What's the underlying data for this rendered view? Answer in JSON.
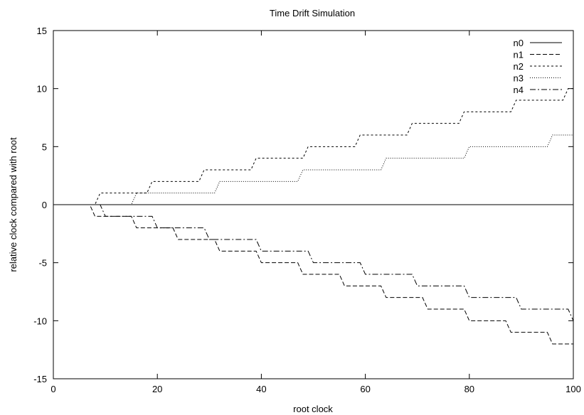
{
  "chart_data": {
    "type": "line",
    "title": "Time Drift Simulation",
    "xlabel": "root clock",
    "ylabel": "relative clock compared with root",
    "xlim": [
      0,
      100
    ],
    "ylim": [
      -15,
      15
    ],
    "xticks": [
      "0",
      "20",
      "40",
      "60",
      "80",
      "100"
    ],
    "yticks": [
      "15",
      "10",
      "5",
      "0",
      "-5",
      "-10",
      "-15"
    ],
    "xtick_values": [
      0,
      20,
      40,
      60,
      80,
      100
    ],
    "ytick_values": [
      15,
      10,
      5,
      0,
      -5,
      -10,
      -15
    ],
    "grid": false,
    "legend_position": "top-right",
    "series": [
      {
        "name": "n0",
        "dash": "solid",
        "points": [
          [
            0,
            0
          ],
          [
            100,
            0
          ]
        ]
      },
      {
        "name": "n1",
        "dash": "6,3",
        "points": [
          [
            0,
            0
          ],
          [
            7,
            0
          ],
          [
            8,
            -1
          ],
          [
            15,
            -1
          ],
          [
            16,
            -2
          ],
          [
            23,
            -2
          ],
          [
            24,
            -3
          ],
          [
            31,
            -3
          ],
          [
            32,
            -4
          ],
          [
            39,
            -4
          ],
          [
            40,
            -5
          ],
          [
            47,
            -5
          ],
          [
            48,
            -6
          ],
          [
            55,
            -6
          ],
          [
            56,
            -7
          ],
          [
            63,
            -7
          ],
          [
            64,
            -8
          ],
          [
            71,
            -8
          ],
          [
            72,
            -9
          ],
          [
            79,
            -9
          ],
          [
            80,
            -10
          ],
          [
            87,
            -10
          ],
          [
            88,
            -11
          ],
          [
            95,
            -11
          ],
          [
            96,
            -12
          ],
          [
            100,
            -12
          ]
        ]
      },
      {
        "name": "n2",
        "dash": "3,3",
        "points": [
          [
            0,
            0
          ],
          [
            8,
            0
          ],
          [
            9,
            1
          ],
          [
            18,
            1
          ],
          [
            19,
            2
          ],
          [
            28,
            2
          ],
          [
            29,
            3
          ],
          [
            38,
            3
          ],
          [
            39,
            4
          ],
          [
            48,
            4
          ],
          [
            49,
            5
          ],
          [
            58,
            5
          ],
          [
            59,
            6
          ],
          [
            68,
            6
          ],
          [
            69,
            7
          ],
          [
            78,
            7
          ],
          [
            79,
            8
          ],
          [
            88,
            8
          ],
          [
            89,
            9
          ],
          [
            98,
            9
          ],
          [
            99,
            10
          ],
          [
            100,
            10
          ]
        ]
      },
      {
        "name": "n3",
        "dash": "1,2",
        "points": [
          [
            0,
            0
          ],
          [
            15,
            0
          ],
          [
            16,
            1
          ],
          [
            31,
            1
          ],
          [
            32,
            2
          ],
          [
            47,
            2
          ],
          [
            48,
            3
          ],
          [
            63,
            3
          ],
          [
            64,
            4
          ],
          [
            79,
            4
          ],
          [
            80,
            5
          ],
          [
            95,
            5
          ],
          [
            96,
            6
          ],
          [
            100,
            6
          ]
        ]
      },
      {
        "name": "n4",
        "dash": "8,3,2,3",
        "points": [
          [
            0,
            0
          ],
          [
            9,
            0
          ],
          [
            10,
            -1
          ],
          [
            19,
            -1
          ],
          [
            20,
            -2
          ],
          [
            29,
            -2
          ],
          [
            30,
            -3
          ],
          [
            39,
            -3
          ],
          [
            40,
            -4
          ],
          [
            49,
            -4
          ],
          [
            50,
            -5
          ],
          [
            59,
            -5
          ],
          [
            60,
            -6
          ],
          [
            69,
            -6
          ],
          [
            70,
            -7
          ],
          [
            79,
            -7
          ],
          [
            80,
            -8
          ],
          [
            89,
            -8
          ],
          [
            90,
            -9
          ],
          [
            99,
            -9
          ],
          [
            100,
            -10
          ]
        ]
      }
    ]
  }
}
